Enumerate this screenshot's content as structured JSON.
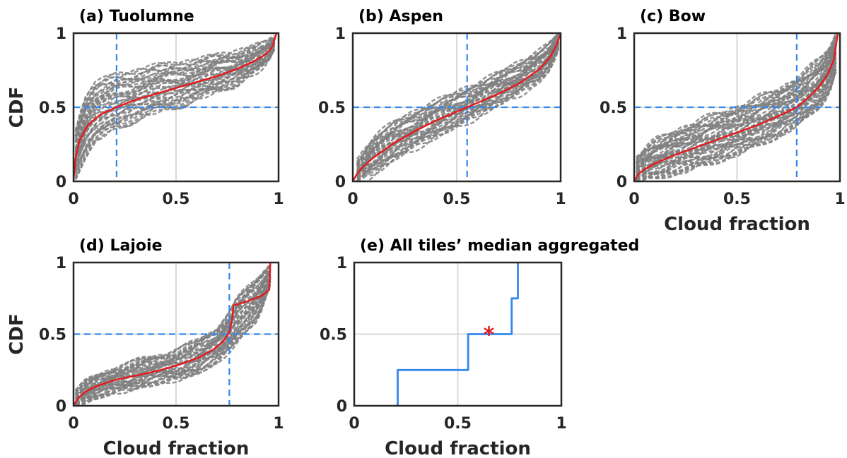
{
  "chart_data": [
    {
      "panel": "a",
      "type": "line",
      "title": "(a) Tuolumne",
      "xlabel": "",
      "ylabel": "CDF",
      "xlim": [
        0,
        1
      ],
      "ylim": [
        0,
        1
      ],
      "xticks": [
        "0",
        "0.5",
        "1"
      ],
      "yticks": [
        "0",
        "0.5",
        "1"
      ],
      "grid": true,
      "median_cloud_fraction": 0.21,
      "median_cdf": 0.5,
      "series": [
        {
          "role": "aggregate",
          "color": "#e41a1c",
          "x": [
            0,
            0.01,
            0.03,
            0.07,
            0.13,
            0.21,
            0.3,
            0.4,
            0.5,
            0.6,
            0.7,
            0.8,
            0.88,
            0.94,
            0.97,
            0.99
          ],
          "y": [
            0,
            0.16,
            0.28,
            0.38,
            0.45,
            0.5,
            0.55,
            0.59,
            0.63,
            0.67,
            0.71,
            0.76,
            0.81,
            0.86,
            0.91,
            1
          ]
        }
      ],
      "tile_band": {
        "color": "#808080",
        "count": 40,
        "x": [
          0.01,
          0.05,
          0.1,
          0.2,
          0.3,
          0.4,
          0.5,
          0.6,
          0.7,
          0.8,
          0.9,
          0.95,
          0.98
        ],
        "lower": [
          0.03,
          0.15,
          0.25,
          0.35,
          0.41,
          0.46,
          0.5,
          0.55,
          0.6,
          0.66,
          0.74,
          0.8,
          0.9
        ],
        "upper": [
          0.35,
          0.55,
          0.66,
          0.72,
          0.75,
          0.78,
          0.8,
          0.82,
          0.85,
          0.88,
          0.92,
          0.94,
          0.97
        ]
      }
    },
    {
      "panel": "b",
      "type": "line",
      "title": "(b) Aspen",
      "xlabel": "",
      "ylabel": "",
      "xlim": [
        0,
        1
      ],
      "ylim": [
        0,
        1
      ],
      "xticks": [
        "0",
        "0.5",
        "1"
      ],
      "yticks": [
        "0",
        "0.5",
        "1"
      ],
      "grid": true,
      "median_cloud_fraction": 0.55,
      "median_cdf": 0.5,
      "series": [
        {
          "role": "aggregate",
          "color": "#e41a1c",
          "x": [
            0,
            0.02,
            0.05,
            0.1,
            0.2,
            0.3,
            0.4,
            0.5,
            0.55,
            0.6,
            0.7,
            0.8,
            0.9,
            0.95,
            0.98,
            1
          ],
          "y": [
            0,
            0.05,
            0.1,
            0.16,
            0.26,
            0.34,
            0.41,
            0.47,
            0.5,
            0.53,
            0.59,
            0.66,
            0.76,
            0.84,
            0.92,
            1
          ]
        }
      ],
      "tile_band": {
        "color": "#808080",
        "count": 40,
        "x": [
          0.02,
          0.1,
          0.2,
          0.3,
          0.4,
          0.5,
          0.6,
          0.7,
          0.8,
          0.9,
          0.95,
          0.99
        ],
        "lower": [
          0,
          0.05,
          0.15,
          0.23,
          0.3,
          0.37,
          0.44,
          0.52,
          0.59,
          0.68,
          0.76,
          0.9
        ],
        "upper": [
          0.13,
          0.3,
          0.4,
          0.47,
          0.54,
          0.6,
          0.66,
          0.73,
          0.8,
          0.88,
          0.93,
          1
        ]
      }
    },
    {
      "panel": "c",
      "type": "line",
      "title": "(c) Bow",
      "xlabel": "Cloud fraction",
      "ylabel": "",
      "xlim": [
        0,
        1
      ],
      "ylim": [
        0,
        1
      ],
      "xticks": [
        "0",
        "0.5",
        "1"
      ],
      "yticks": [
        "0",
        "0.5",
        "1"
      ],
      "grid": true,
      "median_cloud_fraction": 0.79,
      "median_cdf": 0.5,
      "series": [
        {
          "role": "aggregate",
          "color": "#e41a1c",
          "x": [
            0,
            0.02,
            0.05,
            0.1,
            0.2,
            0.3,
            0.4,
            0.5,
            0.6,
            0.7,
            0.79,
            0.85,
            0.9,
            0.94,
            0.97,
            0.99
          ],
          "y": [
            0,
            0.05,
            0.08,
            0.12,
            0.18,
            0.23,
            0.28,
            0.33,
            0.38,
            0.44,
            0.5,
            0.57,
            0.64,
            0.72,
            0.82,
            1
          ]
        }
      ],
      "tile_band": {
        "color": "#808080",
        "count": 50,
        "x": [
          0.01,
          0.05,
          0.1,
          0.2,
          0.3,
          0.4,
          0.5,
          0.6,
          0.7,
          0.8,
          0.9,
          0.95,
          0.98
        ],
        "lower": [
          0,
          0.01,
          0.02,
          0.05,
          0.09,
          0.13,
          0.18,
          0.24,
          0.3,
          0.38,
          0.5,
          0.6,
          0.75
        ],
        "upper": [
          0.15,
          0.22,
          0.27,
          0.34,
          0.4,
          0.45,
          0.5,
          0.56,
          0.62,
          0.7,
          0.82,
          0.9,
          1
        ]
      }
    },
    {
      "panel": "d",
      "type": "line",
      "title": "(d) Lajoie",
      "xlabel": "Cloud fraction",
      "ylabel": "CDF",
      "xlim": [
        0,
        1
      ],
      "ylim": [
        0,
        1
      ],
      "xticks": [
        "0",
        "0.5",
        "1"
      ],
      "yticks": [
        "0",
        "0.5",
        "1"
      ],
      "grid": true,
      "median_cloud_fraction": 0.76,
      "median_cdf": 0.5,
      "series": [
        {
          "role": "aggregate",
          "color": "#e41a1c",
          "x": [
            0,
            0.02,
            0.05,
            0.1,
            0.2,
            0.3,
            0.4,
            0.5,
            0.6,
            0.68,
            0.73,
            0.76,
            0.775,
            0.78,
            0.85,
            0.92,
            0.955,
            0.96
          ],
          "y": [
            0,
            0.05,
            0.09,
            0.13,
            0.18,
            0.21,
            0.24,
            0.28,
            0.33,
            0.39,
            0.45,
            0.51,
            0.62,
            0.7,
            0.73,
            0.77,
            0.81,
            1
          ]
        }
      ],
      "tile_band": {
        "color": "#808080",
        "count": 40,
        "x": [
          0.01,
          0.05,
          0.1,
          0.2,
          0.3,
          0.4,
          0.5,
          0.6,
          0.7,
          0.76,
          0.8,
          0.9,
          0.96
        ],
        "lower": [
          0,
          0.02,
          0.05,
          0.09,
          0.12,
          0.15,
          0.18,
          0.22,
          0.3,
          0.38,
          0.45,
          0.6,
          0.85
        ],
        "upper": [
          0.1,
          0.16,
          0.2,
          0.27,
          0.31,
          0.35,
          0.39,
          0.45,
          0.55,
          0.65,
          0.75,
          0.9,
          1
        ]
      }
    },
    {
      "panel": "e",
      "type": "line",
      "title": "(e) All tiles’ median aggregated",
      "xlabel": "Cloud fraction",
      "ylabel": "",
      "xlim": [
        0,
        1
      ],
      "ylim": [
        0,
        1
      ],
      "xticks": [
        "0",
        "0.5",
        "1"
      ],
      "yticks": [
        "0",
        "0.5",
        "1"
      ],
      "grid": true,
      "series": [
        {
          "role": "step",
          "color": "#3388ee",
          "x": [
            0.21,
            0.21,
            0.55,
            0.55,
            0.76,
            0.76,
            0.79,
            0.79
          ],
          "y": [
            0,
            0.25,
            0.25,
            0.5,
            0.5,
            0.75,
            0.75,
            1
          ]
        }
      ],
      "marker": {
        "symbol": "*",
        "color": "#e41a1c",
        "x": 0.65,
        "y": 0.5
      }
    }
  ]
}
